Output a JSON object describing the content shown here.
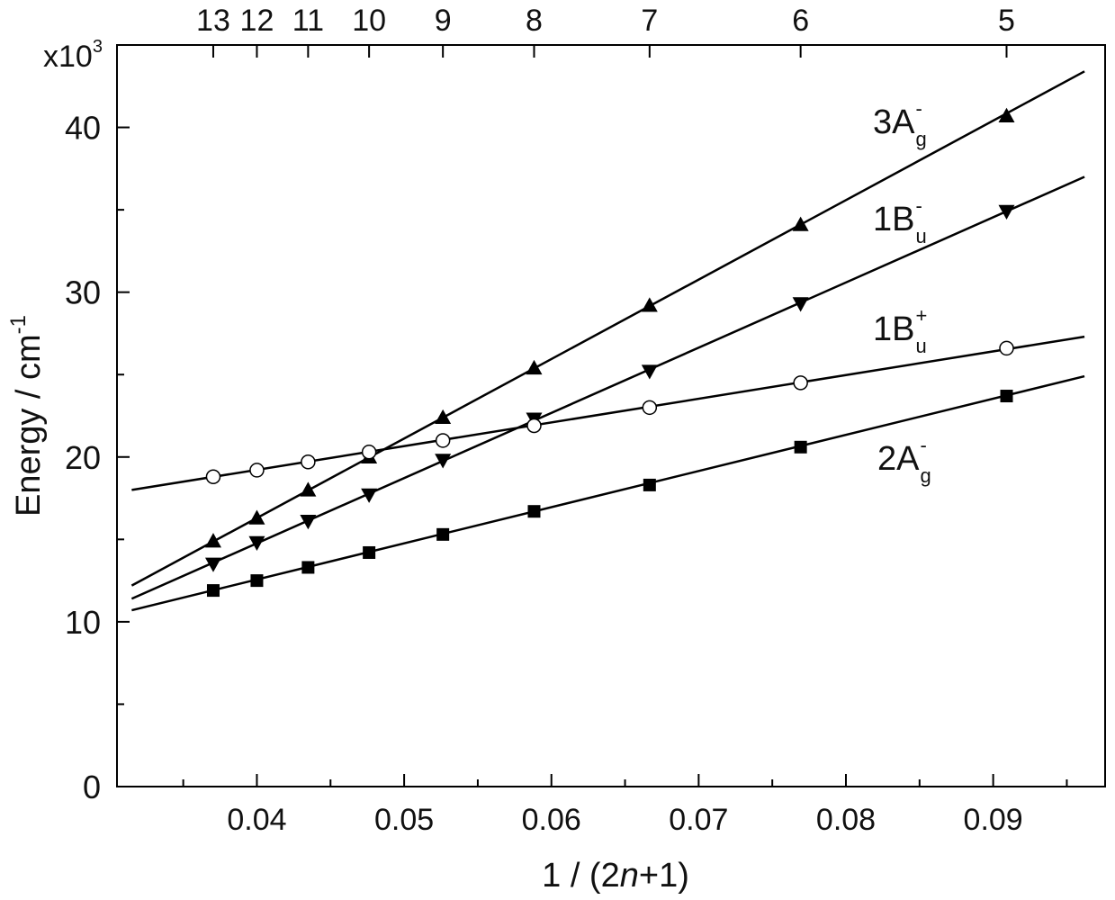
{
  "chart_data": {
    "type": "scatter",
    "x_label": "1 / (2",
    "x_label_italic": "n",
    "x_label_end": "+1)",
    "y_label": "Energy / cm",
    "y_label_sup": "-1",
    "y_multiplier": "x10",
    "y_multiplier_sup": "3",
    "x": [
      0.037037,
      0.04,
      0.043478,
      0.047619,
      0.052632,
      0.058824,
      0.066667,
      0.076923,
      0.090909
    ],
    "xlim": [
      0.0305,
      0.0976
    ],
    "xticks": [
      0.04,
      0.05,
      0.06,
      0.07,
      0.08,
      0.09
    ],
    "xminor": [
      0.035,
      0.045,
      0.055,
      0.065,
      0.075,
      0.085,
      0.095
    ],
    "top_ticks": [
      {
        "value": 0.037037,
        "label": "13"
      },
      {
        "value": 0.04,
        "label": "12"
      },
      {
        "value": 0.043478,
        "label": "11"
      },
      {
        "value": 0.047619,
        "label": "10"
      },
      {
        "value": 0.052632,
        "label": "9"
      },
      {
        "value": 0.058824,
        "label": "8"
      },
      {
        "value": 0.066667,
        "label": "7"
      },
      {
        "value": 0.076923,
        "label": "6"
      },
      {
        "value": 0.090909,
        "label": "5"
      }
    ],
    "ylim": [
      0,
      45
    ],
    "yticks": [
      0,
      10,
      20,
      30,
      40
    ],
    "yminor": [
      5,
      15,
      25,
      35
    ],
    "fit_x": [
      0.0315,
      0.0962
    ],
    "series": [
      {
        "name": "3A",
        "name_sup": "-",
        "name_sub": "g",
        "marker": "triangle-up",
        "color": "#000000",
        "values": [
          14.9,
          16.3,
          18.0,
          20.0,
          22.4,
          25.4,
          29.2,
          34.1,
          40.7
        ],
        "fit": [
          12.2,
          43.4
        ]
      },
      {
        "name": "1B",
        "name_sup": "-",
        "name_sub": "u",
        "marker": "triangle-down",
        "color": "#000000",
        "values": [
          13.5,
          14.8,
          16.1,
          17.7,
          19.8,
          22.3,
          25.2,
          29.3,
          34.9
        ],
        "fit": [
          11.4,
          37.0
        ]
      },
      {
        "name": "1B",
        "name_sup": "+",
        "name_sub": "u",
        "marker": "circle-open",
        "color": "#000000",
        "values": [
          18.8,
          19.2,
          19.7,
          20.3,
          21.0,
          21.9,
          23.0,
          24.5,
          26.6
        ],
        "fit": [
          18.0,
          27.3
        ]
      },
      {
        "name": "2A",
        "name_sup": "-",
        "name_sub": "g",
        "marker": "square",
        "color": "#000000",
        "values": [
          11.9,
          12.5,
          13.3,
          14.2,
          15.3,
          16.7,
          18.3,
          20.6,
          23.7
        ],
        "fit": [
          10.7,
          24.9
        ]
      }
    ]
  }
}
